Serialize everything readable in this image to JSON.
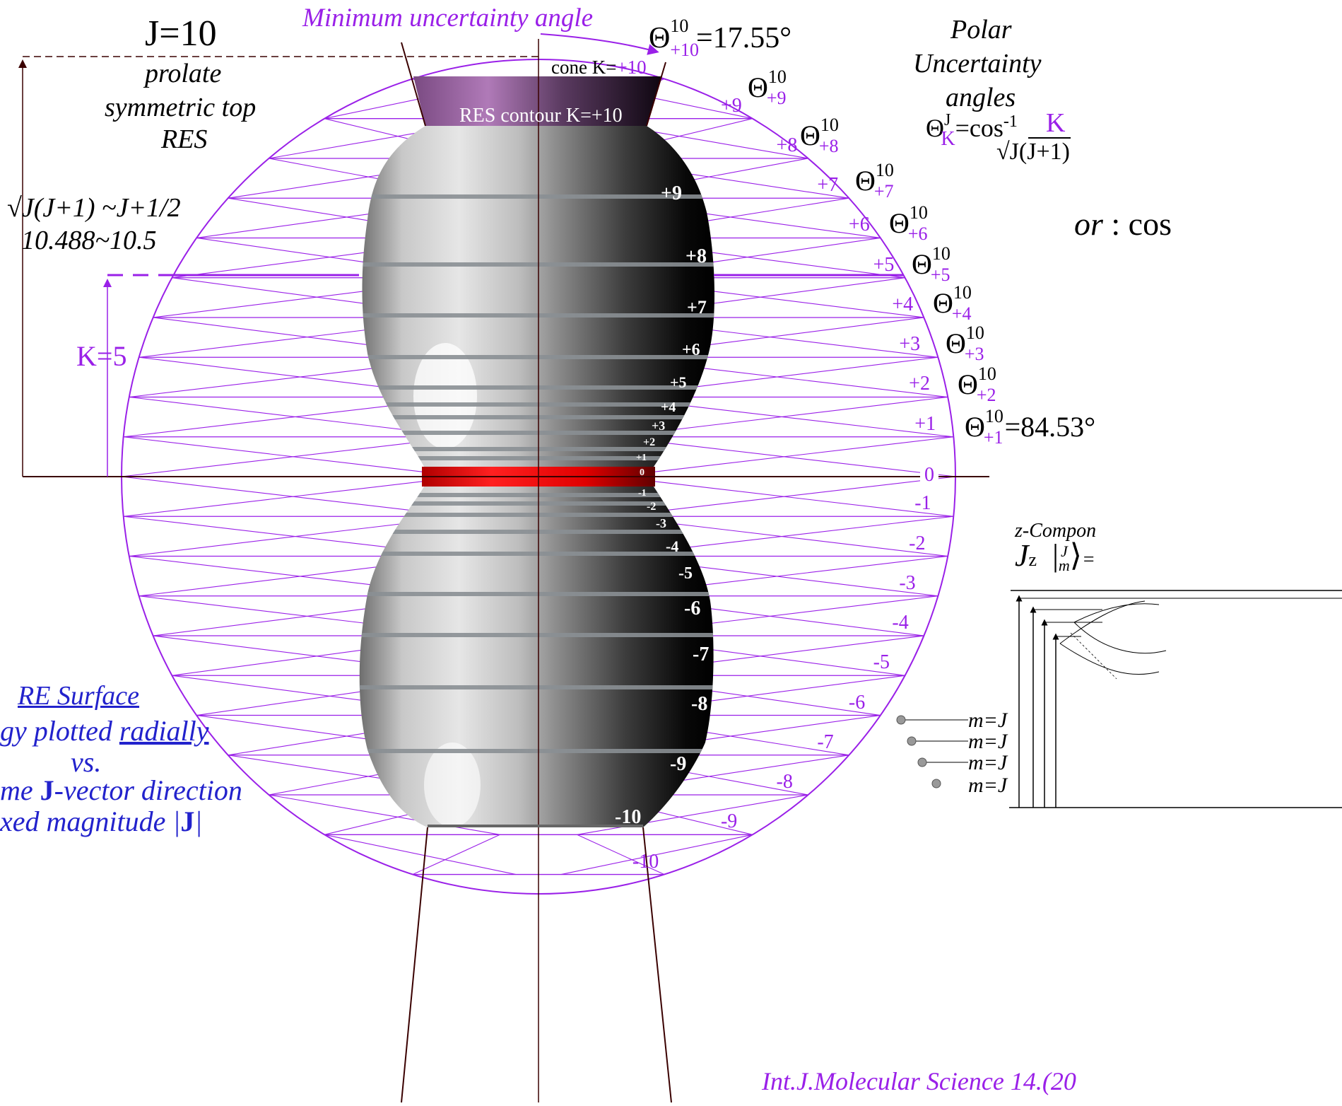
{
  "title_left": {
    "j_label": "J=10",
    "line1": "prolate",
    "line2": "symmetric top",
    "line3": "RES"
  },
  "min_uncertainty_label": "Minimum uncertainty angle",
  "theta_top": {
    "base": "Θ",
    "sup": "10",
    "sub": "+10",
    "value": "=17.55°"
  },
  "cone_label": {
    "text": "cone K=",
    "k": "+10"
  },
  "res_contour_label": "RES contour K=+10",
  "magnitude_labels": {
    "sqrt": "√J(J+1) ~J+1/2",
    "value": "10.488~10.5"
  },
  "k5_label": "K=5",
  "polar_title": [
    "Polar",
    "Uncertainty",
    "angles"
  ],
  "formula": {
    "lhs": "Θ",
    "sup": "J",
    "sub": "K",
    "eq": "=cos",
    "exp": "-1",
    "num": "K",
    "den": "√J(J+1)"
  },
  "or_label": "or : cos",
  "theta_right": [
    {
      "sub": "+9",
      "sup": "10"
    },
    {
      "sub": "+8",
      "sup": "10"
    },
    {
      "sub": "+7",
      "sup": "10"
    },
    {
      "sub": "+6",
      "sup": "10"
    },
    {
      "sub": "+5",
      "sup": "10"
    },
    {
      "sub": "+4",
      "sup": "10"
    },
    {
      "sub": "+3",
      "sup": "10"
    },
    {
      "sub": "+2",
      "sup": "10"
    },
    {
      "sub": "+1",
      "sup": "10",
      "value": "=84.53°"
    }
  ],
  "k_levels_purple": [
    "+9",
    "+8",
    "+7",
    "+6",
    "+5",
    "+4",
    "+3",
    "+2",
    "+1",
    "0",
    "-1",
    "-2",
    "-3",
    "-4",
    "-5",
    "-6",
    "-7",
    "-8",
    "-9",
    "-10"
  ],
  "k_levels_surface": [
    "+9",
    "+8",
    "+7",
    "+6",
    "+5",
    "+4",
    "+3",
    "+2",
    "+1",
    "0",
    "-1",
    "-2",
    "-3",
    "-4",
    "-5",
    "-6",
    "-7",
    "-8",
    "-9",
    "-10"
  ],
  "re_surface": {
    "title": "RE Surface",
    "line2a": "gy plotted ",
    "line2b": "radially",
    "line3": "vs.",
    "line4a": "me ",
    "line4b": "J",
    "line4c": "-vector direction",
    "line5a": "xed magnitude |",
    "line5b": "J",
    "line5c": "|"
  },
  "zcomp": {
    "label": "z-Compon",
    "formula": "J",
    "formula_sub": "z",
    "ket_top": "J",
    "ket_bot": "m",
    "tail": "="
  },
  "m_labels": [
    "m=J",
    "m=J",
    "m=J",
    "m=J"
  ],
  "citation": "Int.J.Molecular Science 14.(20",
  "colors": {
    "purple": "#9a20e8",
    "blue": "#2222cc",
    "dark_red": "#3a0000",
    "red_band": "#e00000"
  }
}
